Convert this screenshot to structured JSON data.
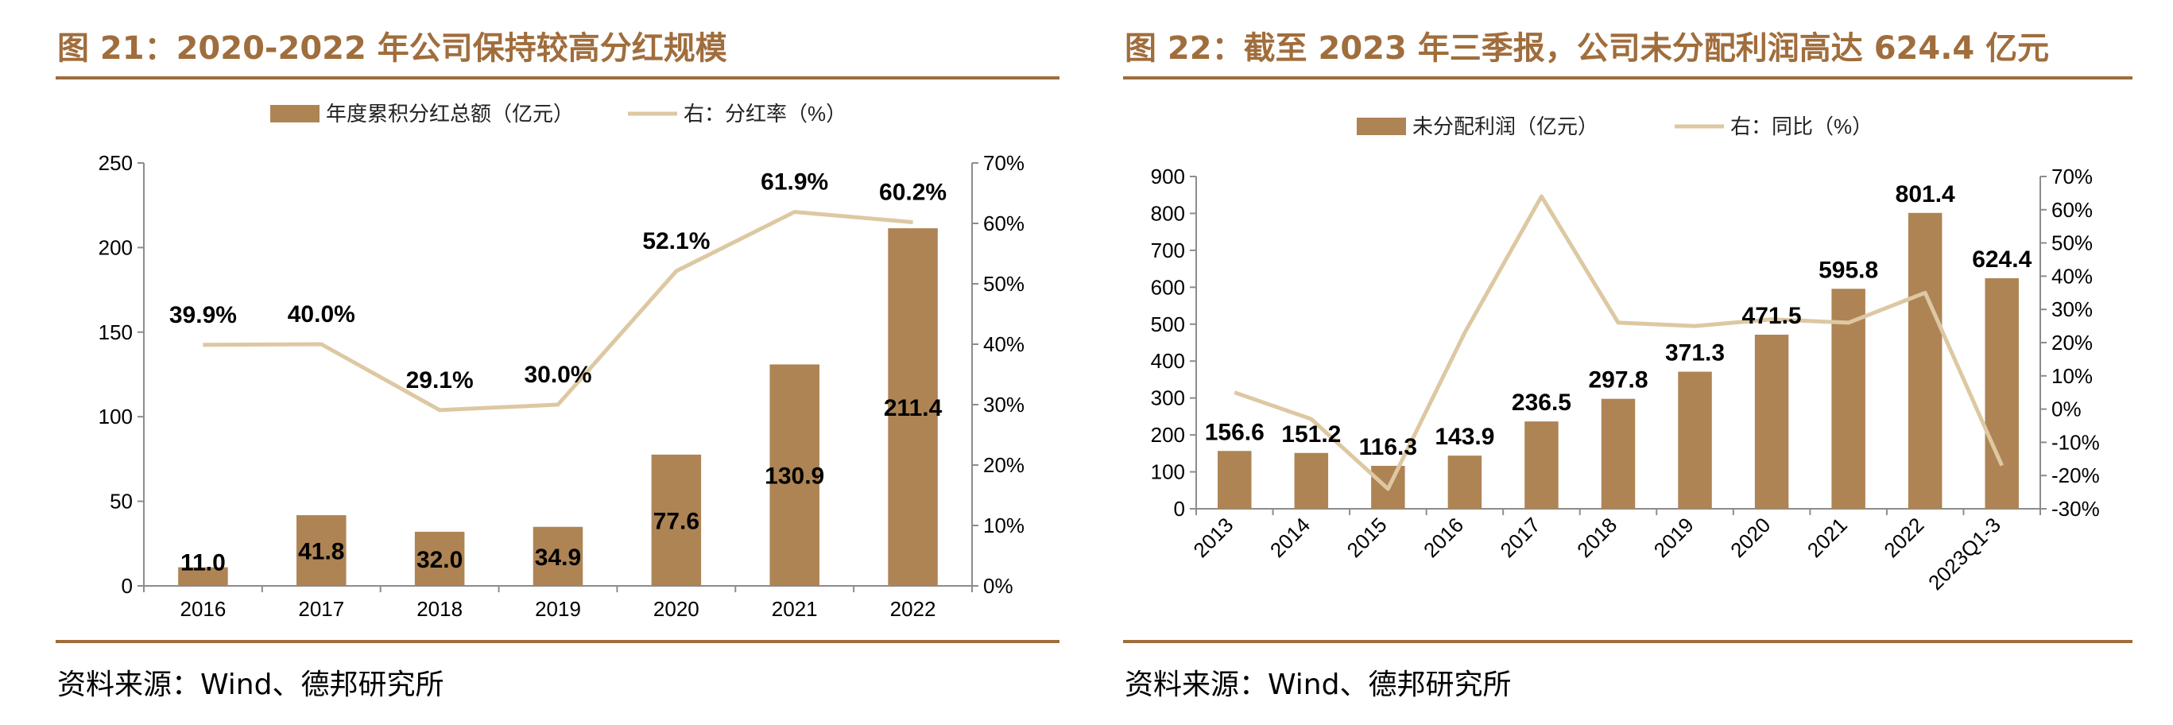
{
  "colors": {
    "bar": "#ae8455",
    "line": "#ddc8a2",
    "accent": "#a06d3c",
    "axis": "#8c8c8c",
    "text": "#000000"
  },
  "left": {
    "title": "图 21：2020-2022 年公司保持较高分红规模",
    "source": "资料来源：Wind、德邦研究所"
  },
  "right": {
    "title": "图 22：截至 2023 年三季报，公司未分配利润高达 624.4 亿元",
    "source": "资料来源：Wind、德邦研究所"
  },
  "chart_data": [
    {
      "type": "bar",
      "title": "图 21：2020-2022 年公司保持较高分红规模",
      "categories": [
        "2016",
        "2017",
        "2018",
        "2019",
        "2020",
        "2021",
        "2022"
      ],
      "series": [
        {
          "name": "年度累积分红总额（亿元）",
          "type": "bar",
          "axis": "left",
          "values": [
            11.0,
            41.8,
            32.0,
            34.9,
            77.6,
            130.9,
            211.4
          ],
          "labels": [
            "11.0",
            "41.8",
            "32.0",
            "34.9",
            "77.6",
            "130.9",
            "211.4"
          ]
        },
        {
          "name": "右：分红率（%）",
          "type": "line",
          "axis": "right",
          "values": [
            39.9,
            40.0,
            29.1,
            30.0,
            52.1,
            61.9,
            60.2
          ],
          "labels": [
            "39.9%",
            "40.0%",
            "29.1%",
            "30.0%",
            "52.1%",
            "61.9%",
            "60.2%"
          ]
        }
      ],
      "ylim": [
        0,
        250
      ],
      "yticks": [
        "0",
        "50",
        "100",
        "150",
        "200",
        "250"
      ],
      "y2lim": [
        0,
        70
      ],
      "y2ticks": [
        "0%",
        "10%",
        "20%",
        "30%",
        "40%",
        "50%",
        "60%",
        "70%"
      ],
      "legend": "top-center",
      "grid": false
    },
    {
      "type": "bar",
      "title": "图 22：截至 2023 年三季报，公司未分配利润高达 624.4 亿元",
      "categories": [
        "2013",
        "2014",
        "2015",
        "2016",
        "2017",
        "2018",
        "2019",
        "2020",
        "2021",
        "2022",
        "2023Q1-3"
      ],
      "series": [
        {
          "name": "未分配利润（亿元）",
          "type": "bar",
          "axis": "left",
          "values": [
            156.6,
            151.2,
            116.3,
            143.9,
            236.5,
            297.8,
            371.3,
            471.5,
            595.8,
            801.4,
            624.4
          ],
          "labels": [
            "156.6",
            "151.2",
            "116.3",
            "143.9",
            "236.5",
            "297.8",
            "371.3",
            "471.5",
            "595.8",
            "801.4",
            "624.4"
          ]
        },
        {
          "name": "右：同比（%）",
          "type": "line",
          "axis": "right",
          "values": [
            5,
            -3,
            -24,
            23,
            64,
            26,
            25,
            27,
            26,
            35,
            -17
          ]
        }
      ],
      "ylim": [
        0,
        900
      ],
      "yticks": [
        "0",
        "100",
        "200",
        "300",
        "400",
        "500",
        "600",
        "700",
        "800",
        "900"
      ],
      "y2lim": [
        -30,
        70
      ],
      "y2ticks": [
        "-30%",
        "-20%",
        "-10%",
        "0%",
        "10%",
        "20%",
        "30%",
        "40%",
        "50%",
        "60%",
        "70%"
      ],
      "legend": "top-center",
      "grid": false
    }
  ]
}
